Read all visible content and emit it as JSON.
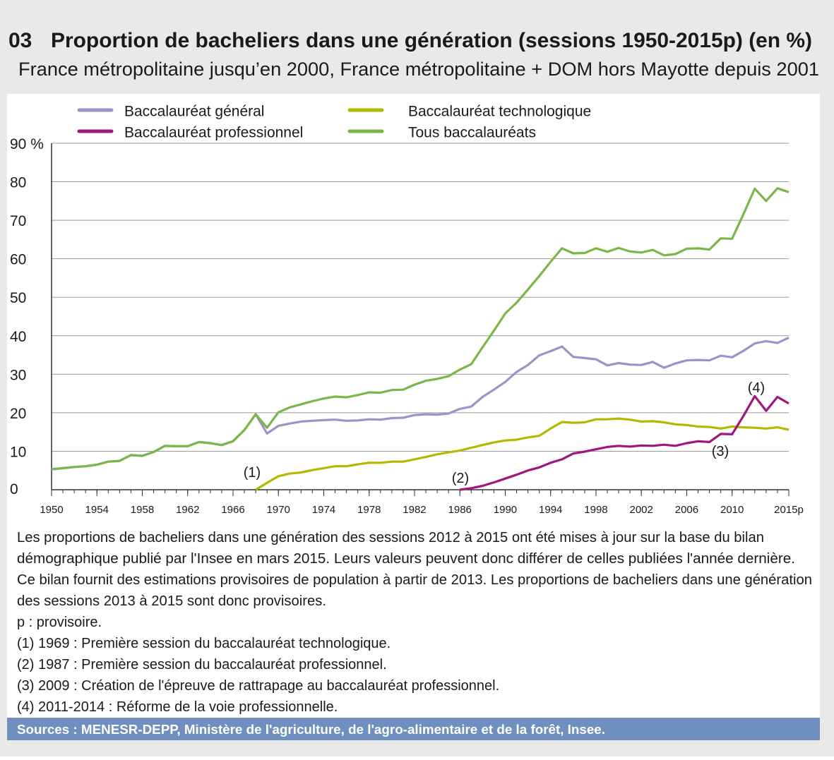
{
  "number": "03",
  "title": "Proportion de bacheliers dans une génération (sessions 1950-2015p) (en %)",
  "subtitle": "France métropolitaine jusqu’en 2000, France métropolitaine + DOM hors Mayotte depuis 2001",
  "chart_data": {
    "type": "line",
    "x": [
      1950,
      1951,
      1952,
      1953,
      1954,
      1955,
      1956,
      1957,
      1958,
      1959,
      1960,
      1961,
      1962,
      1963,
      1964,
      1965,
      1966,
      1967,
      1968,
      1969,
      1970,
      1971,
      1972,
      1973,
      1974,
      1975,
      1976,
      1977,
      1978,
      1979,
      1980,
      1981,
      1982,
      1983,
      1984,
      1985,
      1986,
      1987,
      1988,
      1989,
      1990,
      1991,
      1992,
      1993,
      1994,
      1995,
      1996,
      1997,
      1998,
      1999,
      2000,
      2001,
      2002,
      2003,
      2004,
      2005,
      2006,
      2007,
      2008,
      2009,
      2010,
      2011,
      2012,
      2013,
      2014,
      2015
    ],
    "series": [
      {
        "name": "Baccalauréat général",
        "color": "#9b93c9",
        "values": [
          5.3,
          5.6,
          5.9,
          6.1,
          6.5,
          7.3,
          7.5,
          9.0,
          8.8,
          9.8,
          11.4,
          11.3,
          11.3,
          12.4,
          12.1,
          11.6,
          12.6,
          15.5,
          19.6,
          14.6,
          16.6,
          17.2,
          17.7,
          17.9,
          18.1,
          18.2,
          17.9,
          18.0,
          18.3,
          18.2,
          18.6,
          18.7,
          19.4,
          19.6,
          19.5,
          19.8,
          21.0,
          21.6,
          24.1,
          26.0,
          28.0,
          30.6,
          32.4,
          34.9,
          36.0,
          37.2,
          34.5,
          34.2,
          33.9,
          32.3,
          32.9,
          32.5,
          32.4,
          33.2,
          31.7,
          32.8,
          33.6,
          33.7,
          33.6,
          34.8,
          34.4,
          36.1,
          38.0,
          38.6,
          38.1,
          39.5
        ]
      },
      {
        "name": "Baccalauréat technologique",
        "color": "#b5b800",
        "values": [
          null,
          null,
          null,
          null,
          null,
          null,
          null,
          null,
          null,
          null,
          null,
          null,
          null,
          null,
          null,
          null,
          null,
          null,
          0,
          1.8,
          3.5,
          4.2,
          4.5,
          5.1,
          5.6,
          6.1,
          6.1,
          6.6,
          7.0,
          7.0,
          7.3,
          7.3,
          7.9,
          8.5,
          9.2,
          9.7,
          10.2,
          10.9,
          11.6,
          12.3,
          12.8,
          13.0,
          13.6,
          14.0,
          15.9,
          17.6,
          17.4,
          17.5,
          18.3,
          18.3,
          18.5,
          18.2,
          17.7,
          17.8,
          17.5,
          17.0,
          16.8,
          16.4,
          16.3,
          15.9,
          16.4,
          16.2,
          16.1,
          15.9,
          16.2,
          15.6
        ]
      },
      {
        "name": "Baccalauréat professionnel",
        "color": "#a0167f",
        "values": [
          null,
          null,
          null,
          null,
          null,
          null,
          null,
          null,
          null,
          null,
          null,
          null,
          null,
          null,
          null,
          null,
          null,
          null,
          null,
          null,
          null,
          null,
          null,
          null,
          null,
          null,
          null,
          null,
          null,
          null,
          null,
          null,
          null,
          null,
          null,
          null,
          0,
          0.4,
          1.0,
          1.9,
          2.9,
          3.9,
          5.0,
          5.8,
          7.0,
          7.9,
          9.4,
          9.9,
          10.5,
          11.1,
          11.4,
          11.2,
          11.5,
          11.4,
          11.7,
          11.4,
          12.1,
          12.6,
          12.4,
          14.5,
          14.4,
          19.2,
          24.3,
          20.5,
          24.1,
          22.4
        ]
      },
      {
        "name": "Tous baccalauréats",
        "color": "#7ab648",
        "values": [
          5.3,
          5.6,
          5.9,
          6.1,
          6.5,
          7.3,
          7.5,
          9.0,
          8.8,
          9.8,
          11.4,
          11.3,
          11.3,
          12.4,
          12.1,
          11.6,
          12.6,
          15.5,
          19.6,
          16.1,
          20.1,
          21.4,
          22.2,
          23.0,
          23.7,
          24.2,
          24.0,
          24.6,
          25.3,
          25.2,
          25.9,
          26.0,
          27.3,
          28.3,
          28.8,
          29.5,
          31.2,
          32.6,
          37.0,
          41.3,
          45.8,
          48.6,
          52.0,
          55.5,
          59.2,
          62.7,
          61.4,
          61.5,
          62.7,
          61.8,
          62.8,
          61.9,
          61.6,
          62.3,
          60.9,
          61.2,
          62.6,
          62.7,
          62.4,
          65.3,
          65.2,
          71.6,
          78.2,
          75.0,
          78.3,
          77.3
        ]
      }
    ],
    "xlim": [
      1950,
      2015
    ],
    "xticks": [
      1950,
      1954,
      1958,
      1962,
      1966,
      1970,
      1974,
      1978,
      1982,
      1986,
      1990,
      1994,
      1998,
      2002,
      2006,
      2010,
      {
        "value": 2015,
        "label": "2015p"
      }
    ],
    "ylim": [
      0,
      90
    ],
    "yticks": [
      0,
      10,
      20,
      30,
      40,
      50,
      60,
      70,
      80,
      {
        "value": 90,
        "label": "90 %"
      }
    ],
    "grid": true,
    "annotations": [
      "(1)",
      "(2)",
      "(3)",
      "(4)"
    ]
  },
  "notes": [
    "Les proportions de bacheliers dans une génération des sessions 2012 à 2015 ont été mises à jour sur la base du bilan",
    "démographique publié par l'Insee en mars 2015. Leurs valeurs peuvent donc différer de celles publiées l'année dernière.",
    "Ce bilan fournit des estimations provisoires de population à partir de 2013. Les proportions de bacheliers dans une génération",
    "des sessions 2013 à 2015 sont donc provisoires.",
    "p : provisoire.",
    "(1) 1969 : Première session du baccalauréat technologique.",
    "(2) 1987 : Première session du baccalauréat professionnel.",
    "(3) 2009 :  Création de l'épreuve de rattrapage au baccalauréat professionnel.",
    "(4) 2011-2014 : Réforme de la voie professionnelle."
  ],
  "sources": "Sources : MENESR-DEPP, Ministère de l'agriculture, de l'agro-alimentaire et de la forêt, Insee."
}
